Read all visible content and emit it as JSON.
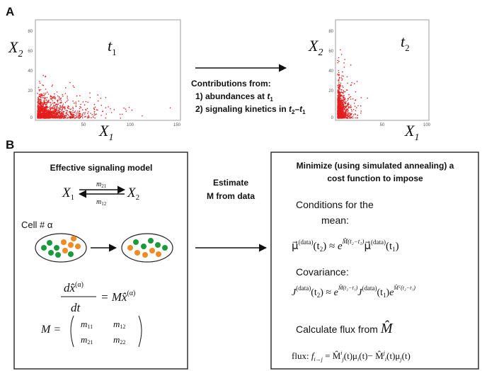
{
  "panel_a": {
    "label": "A",
    "left_plot": {
      "y_label": [
        "X",
        "2"
      ],
      "x_label": [
        "X",
        "1"
      ],
      "time_label": [
        "t",
        "1"
      ],
      "yticks": [
        "80",
        "60",
        "40",
        "20",
        "0"
      ],
      "xticks": [
        "50",
        "100",
        "150"
      ]
    },
    "right_plot": {
      "y_label": [
        "X",
        "2"
      ],
      "x_label": [
        "X",
        "1"
      ],
      "time_label": [
        "t",
        "2"
      ],
      "yticks": [
        "80",
        "60",
        "40",
        "20",
        "0"
      ],
      "xticks": [
        "50",
        "100"
      ]
    },
    "contributions": {
      "heading": "Contributions from:",
      "item_1": [
        "1) abundances at ",
        "t",
        "1"
      ],
      "item_2": [
        "2) signaling kinetics in ",
        "t",
        "2",
        "–",
        "t",
        "1"
      ]
    }
  },
  "panel_b": {
    "label": "B",
    "left_box": {
      "title": "Effective signaling model",
      "reaction": [
        "X",
        "1",
        "X",
        "2",
        "m",
        "21",
        "m",
        "12"
      ],
      "cell_label": "Cell # α",
      "equation": {
        "numerator": [
          "dx̂",
          "(α)"
        ],
        "denominator": "dt",
        "rhs": [
          "= Mx̂",
          "(α)"
        ]
      },
      "matrix": {
        "name": "M =",
        "entries": [
          [
            "m",
            "11"
          ],
          [
            "m",
            "12"
          ],
          [
            "m",
            "21"
          ],
          [
            "m",
            "22"
          ]
        ]
      }
    },
    "middle": {
      "lines": [
        "Estimate",
        "M from data"
      ]
    },
    "right_box": {
      "title": [
        "Minimize (using simulated annealing) a",
        "cost function to impose"
      ],
      "mean_heading": [
        "Conditions for the",
        "mean:"
      ],
      "mean_equation": [
        "μ⃗",
        "(data)",
        "(t",
        "2",
        ") ≈ ",
        "e",
        "M̂(t₂−t₁)",
        "μ⃗",
        "(data)",
        "(t",
        "1",
        ")"
      ],
      "covariance_heading": "Covariance:",
      "covariance_equation": [
        "J",
        "(data)",
        "(t",
        "2",
        ") ≈ ",
        "e",
        "M̂(t₂−t₁)",
        "J",
        "(data)",
        "(t",
        "1",
        ")",
        "e",
        "M̂ᵀ(t₂−t₁)"
      ],
      "flux_heading": [
        "Calculate flux from ",
        "M̂"
      ],
      "flux_equation": [
        "flux:  ",
        "f",
        "i→j",
        " = M̂",
        "i",
        "j",
        "(t)μ",
        "i",
        "(t)− M̂",
        "j",
        "i",
        "(t)μ",
        "j",
        "(t)"
      ]
    }
  }
}
